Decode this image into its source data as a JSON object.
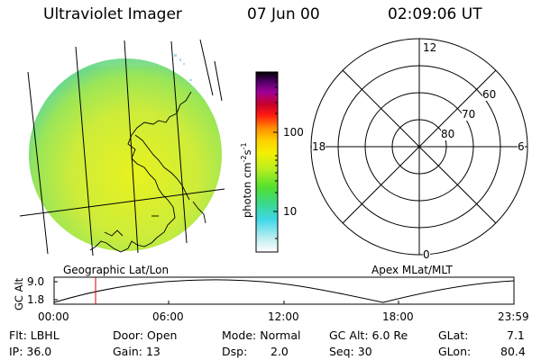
{
  "header": {
    "instrument": "Ultraviolet Imager",
    "date": "07 Jun 00",
    "time": "02:09:06 UT"
  },
  "colorbar": {
    "unit_label": "photon cm",
    "unit_exp1": "-2",
    "unit_s": "s",
    "unit_exp2": "-1",
    "ticks": [
      "100",
      "10"
    ]
  },
  "polar_plot": {
    "mlt_labels": {
      "top": "12",
      "left": "18",
      "right": "6",
      "bottom": "0"
    },
    "lat_labels": [
      "60",
      "70",
      "80"
    ]
  },
  "panel_captions": {
    "left": "Geographic Lat/Lon",
    "right": "Apex MLat/MLT"
  },
  "altitude_plot": {
    "axis_label": "GC Alt",
    "y_ticks": [
      "9.0",
      "1.8"
    ],
    "x_ticks": [
      "00:00",
      "06:00",
      "12:00",
      "18:00",
      "23:59"
    ],
    "marker_time": "02:09"
  },
  "status": {
    "filter": {
      "label": "Flt:",
      "value": "LBHL"
    },
    "door": {
      "label": "Door:",
      "value": "Open"
    },
    "mode": {
      "label": "Mode:",
      "value": "Normal"
    },
    "gc_alt": {
      "label": "GC Alt:",
      "value": "6.0 Re"
    },
    "glat": {
      "label": "GLat:",
      "value": "7.1"
    },
    "ip": {
      "label": "IP:",
      "value": "36.0"
    },
    "gain": {
      "label": "Gain:",
      "value": "13"
    },
    "dsp": {
      "label": "Dsp:",
      "value": "2.0"
    },
    "seq": {
      "label": "Seq:",
      "value": "30"
    },
    "glon": {
      "label": "GLon:",
      "value": "80.4"
    }
  },
  "colors": {
    "disk_main": "#d4ee3a",
    "disk_edge": "#7fe07a",
    "marker": "#e00000"
  }
}
